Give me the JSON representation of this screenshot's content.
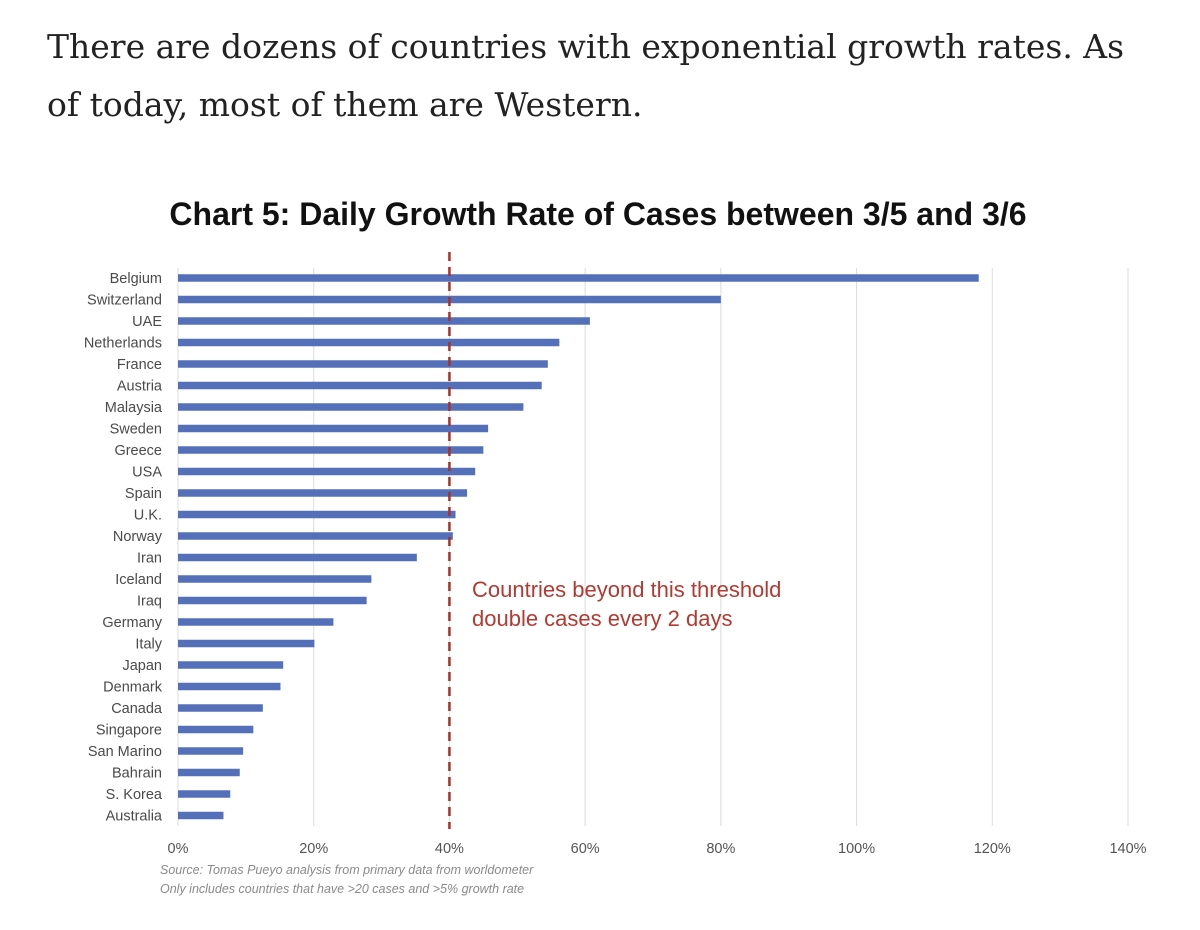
{
  "article": {
    "paragraph": "There are dozens of countries with exponential growth rates. As of today, most of them are Western."
  },
  "chart_data": {
    "type": "bar",
    "orientation": "horizontal",
    "title": "Chart 5: Daily Growth Rate of Cases between 3/5 and 3/6",
    "categories": [
      "Belgium",
      "Switzerland",
      "UAE",
      "Netherlands",
      "France",
      "Austria",
      "Malaysia",
      "Sweden",
      "Greece",
      "USA",
      "Spain",
      "U.K.",
      "Norway",
      "Iran",
      "Iceland",
      "Iraq",
      "Germany",
      "Italy",
      "Japan",
      "Denmark",
      "Canada",
      "Singapore",
      "San Marino",
      "Bahrain",
      "S. Korea",
      "Australia"
    ],
    "values": [
      118,
      80,
      60.7,
      56.2,
      54.5,
      53.6,
      50.9,
      45.7,
      45,
      43.8,
      42.6,
      40.9,
      40.5,
      35.2,
      28.5,
      27.8,
      22.9,
      20.1,
      15.5,
      15.1,
      12.5,
      11.1,
      9.6,
      9.1,
      7.7,
      6.7
    ],
    "value_unit": "%",
    "xlim": [
      0,
      140
    ],
    "xticks": [
      0,
      20,
      40,
      60,
      80,
      100,
      120,
      140
    ],
    "xtick_labels": [
      "0%",
      "20%",
      "40%",
      "60%",
      "80%",
      "100%",
      "120%",
      "140%"
    ],
    "xlabel": "",
    "ylabel": "",
    "grid": true,
    "bar_color": "#5470b8",
    "threshold": {
      "value": 40,
      "color": "#a8312a",
      "style": "dashed",
      "annotation": [
        "Countries beyond this threshold",
        "double cases every 2 days"
      ]
    },
    "source_lines": [
      "Source: Tomas Pueyo analysis from primary data from worldometer",
      "Only includes countries that have >20 cases and >5% growth rate"
    ]
  }
}
